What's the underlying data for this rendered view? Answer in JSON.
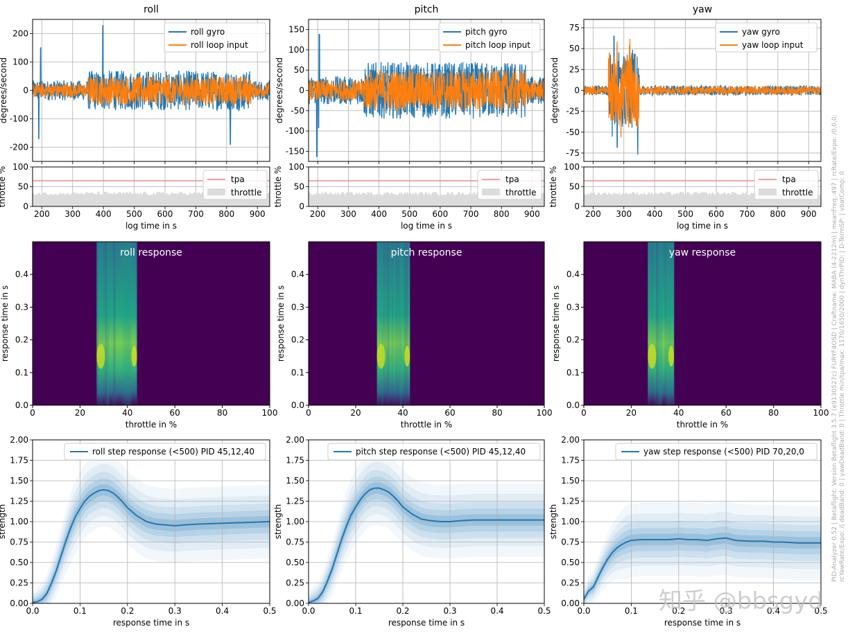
{
  "colors": {
    "gyro": "#1f77b4",
    "loop": "#ff7f0e",
    "tpa": "#f08080",
    "throttle": "#dcdcdc",
    "step": "#1f77b4",
    "grid": "#b0b0b0",
    "heat_bg": "#440154"
  },
  "side_text": {
    "line1": "PID-Analyzer 0.52 | Betaflight: Version Betaflight 3.5.7 (e9130527c) FURYF4OSD | Craftname: MABA (4-2212m) | meanFreq.:497 | rcRate/Expo: /0,0,0;",
    "line2": "rcYawRate/Expo: /| deadBand: 0 | yawDeadBand: 0 | Throttle min/tpa/max: 1170/1650/2000 | dynThrPID: | D-TermSP: | vbatComp: 0"
  },
  "watermark": "知乎 @bbsgyd",
  "chart_data": [
    {
      "id": "roll_time",
      "type": "line",
      "title": "roll",
      "ylabel": "degrees/second",
      "xlim": [
        170,
        940
      ],
      "ylim": [
        -250,
        250
      ],
      "yticks": [
        -200,
        -100,
        0,
        100,
        200
      ],
      "series": [
        {
          "name": "roll gyro",
          "amp_in": 70,
          "amp_out": 35,
          "spikes": [
            [
              190,
              -170
            ],
            [
              196,
              150
            ],
            [
              398,
              228
            ],
            [
              812,
              -190
            ]
          ]
        },
        {
          "name": "roll loop input",
          "amp_in": 50,
          "amp_out": 25
        }
      ]
    },
    {
      "id": "pitch_time",
      "type": "line",
      "title": "pitch",
      "ylabel": "degrees/second",
      "xlim": [
        170,
        940
      ],
      "ylim": [
        -175,
        175
      ],
      "yticks": [
        -150,
        -100,
        -50,
        0,
        50,
        100,
        150
      ],
      "series": [
        {
          "name": "pitch gyro",
          "amp_in": 70,
          "amp_out": 35,
          "spikes": [
            [
              197,
              -163
            ],
            [
              205,
              138
            ],
            [
              203,
              -92
            ]
          ]
        },
        {
          "name": "pitch loop input",
          "amp_in": 50,
          "amp_out": 25
        }
      ]
    },
    {
      "id": "yaw_time",
      "type": "line",
      "title": "yaw",
      "ylabel": "degrees/second",
      "xlim": [
        170,
        940
      ],
      "ylim": [
        -85,
        85
      ],
      "yticks": [
        -75,
        -50,
        -25,
        0,
        25,
        50,
        75
      ],
      "series": [
        {
          "name": "yaw gyro",
          "amp_in": 6,
          "amp_out": 6,
          "burst": [
            250,
            350
          ],
          "spikes": [
            [
              268,
              65
            ],
            [
              278,
              -68
            ],
            [
              300,
              40
            ],
            [
              345,
              -77
            ]
          ]
        },
        {
          "name": "yaw loop input",
          "amp_in": 5,
          "amp_out": 5
        }
      ]
    },
    {
      "id": "roll_thr",
      "type": "area",
      "xlabel": "log time in s",
      "ylabel": "throttle %",
      "xlim": [
        170,
        940
      ],
      "ylim": [
        0,
        100
      ],
      "yticks": [
        0,
        50,
        100
      ],
      "xticks": [
        200,
        300,
        400,
        500,
        600,
        700,
        800,
        900
      ],
      "series": [
        {
          "name": "tpa",
          "value": 65
        },
        {
          "name": "throttle",
          "value": 33
        }
      ]
    },
    {
      "id": "pitch_thr",
      "type": "area",
      "xlabel": "log time in s",
      "ylabel": "throttle %",
      "xlim": [
        170,
        940
      ],
      "ylim": [
        0,
        100
      ],
      "yticks": [
        0,
        50,
        100
      ],
      "xticks": [
        200,
        300,
        400,
        500,
        600,
        700,
        800,
        900
      ],
      "series": [
        {
          "name": "tpa",
          "value": 65
        },
        {
          "name": "throttle",
          "value": 33
        }
      ]
    },
    {
      "id": "yaw_thr",
      "type": "area",
      "xlabel": "log time in s",
      "ylabel": "throttle %",
      "xlim": [
        170,
        940
      ],
      "ylim": [
        0,
        100
      ],
      "yticks": [
        0,
        50,
        100
      ],
      "xticks": [
        200,
        300,
        400,
        500,
        600,
        700,
        800,
        900
      ],
      "series": [
        {
          "name": "tpa",
          "value": 65
        },
        {
          "name": "throttle",
          "value": 33
        }
      ]
    },
    {
      "id": "roll_heat",
      "type": "heatmap",
      "title": "roll response",
      "xlabel": "throttle in %",
      "ylabel": "response time in s",
      "xlim": [
        0,
        100
      ],
      "ylim": [
        0,
        0.5
      ],
      "xticks": [
        0,
        20,
        40,
        60,
        80,
        100
      ],
      "yticks": [
        0.0,
        0.1,
        0.2,
        0.3,
        0.4
      ],
      "band": [
        27,
        44
      ]
    },
    {
      "id": "pitch_heat",
      "type": "heatmap",
      "title": "pitch response",
      "xlabel": "throttle in %",
      "ylabel": "response time in s",
      "xlim": [
        0,
        100
      ],
      "ylim": [
        0,
        0.5
      ],
      "xticks": [
        0,
        20,
        40,
        60,
        80,
        100
      ],
      "yticks": [
        0.0,
        0.1,
        0.2,
        0.3,
        0.4
      ],
      "band": [
        29,
        43
      ]
    },
    {
      "id": "yaw_heat",
      "type": "heatmap",
      "title": "yaw response",
      "xlabel": "throttle in %",
      "ylabel": "response time in s",
      "xlim": [
        0,
        100
      ],
      "ylim": [
        0,
        0.5
      ],
      "xticks": [
        0,
        20,
        40,
        60,
        80,
        100
      ],
      "yticks": [
        0.0,
        0.1,
        0.2,
        0.3,
        0.4
      ],
      "band": [
        27,
        38
      ]
    },
    {
      "id": "roll_step",
      "type": "line",
      "series_name": "roll step response (<500)  PID 45,12,40",
      "xlabel": "response time in s",
      "ylabel": "strength",
      "xlim": [
        0,
        0.5
      ],
      "ylim": [
        0,
        2
      ],
      "xticks": [
        0.0,
        0.1,
        0.2,
        0.3,
        0.4,
        0.5
      ],
      "yticks": [
        0.0,
        0.25,
        0.5,
        0.75,
        1.0,
        1.25,
        1.5,
        1.75,
        2.0
      ],
      "x": [
        0,
        0.01,
        0.02,
        0.03,
        0.04,
        0.05,
        0.06,
        0.07,
        0.08,
        0.09,
        0.1,
        0.11,
        0.12,
        0.13,
        0.14,
        0.15,
        0.16,
        0.17,
        0.18,
        0.19,
        0.2,
        0.22,
        0.24,
        0.26,
        0.28,
        0.3,
        0.32,
        0.35,
        0.4,
        0.45,
        0.5
      ],
      "y": [
        0.01,
        0.02,
        0.05,
        0.12,
        0.25,
        0.4,
        0.58,
        0.76,
        0.92,
        1.06,
        1.16,
        1.25,
        1.31,
        1.35,
        1.38,
        1.39,
        1.38,
        1.35,
        1.3,
        1.24,
        1.17,
        1.07,
        1.0,
        0.97,
        0.96,
        0.95,
        0.96,
        0.97,
        0.98,
        0.99,
        1.0
      ]
    },
    {
      "id": "pitch_step",
      "type": "line",
      "series_name": "pitch step response (<500)  PID 45,12,40",
      "xlabel": "response time in s",
      "ylabel": "strength",
      "xlim": [
        0,
        0.5
      ],
      "ylim": [
        0,
        2
      ],
      "xticks": [
        0.0,
        0.1,
        0.2,
        0.3,
        0.4,
        0.5
      ],
      "yticks": [
        0.0,
        0.25,
        0.5,
        0.75,
        1.0,
        1.25,
        1.5,
        1.75,
        2.0
      ],
      "x": [
        0,
        0.01,
        0.02,
        0.03,
        0.04,
        0.05,
        0.06,
        0.07,
        0.08,
        0.09,
        0.1,
        0.11,
        0.12,
        0.13,
        0.14,
        0.15,
        0.16,
        0.17,
        0.18,
        0.19,
        0.2,
        0.22,
        0.24,
        0.26,
        0.28,
        0.3,
        0.32,
        0.35,
        0.4,
        0.45,
        0.5
      ],
      "y": [
        0.01,
        0.03,
        0.06,
        0.14,
        0.27,
        0.42,
        0.6,
        0.78,
        0.94,
        1.08,
        1.18,
        1.27,
        1.34,
        1.39,
        1.41,
        1.41,
        1.39,
        1.36,
        1.31,
        1.25,
        1.18,
        1.09,
        1.03,
        1.01,
        1.0,
        1.0,
        1.01,
        1.02,
        1.02,
        1.02,
        1.02
      ]
    },
    {
      "id": "yaw_step",
      "type": "line",
      "series_name": "yaw step response (<500)  PID 70,20,0",
      "xlabel": "response time in s",
      "ylabel": "strength",
      "xlim": [
        0,
        0.5
      ],
      "ylim": [
        0,
        2
      ],
      "xticks": [
        0.0,
        0.1,
        0.2,
        0.3,
        0.4,
        0.5
      ],
      "yticks": [
        0.0,
        0.25,
        0.5,
        0.75,
        1.0,
        1.25,
        1.5,
        1.75,
        2.0
      ],
      "x": [
        0,
        0.005,
        0.01,
        0.02,
        0.03,
        0.04,
        0.05,
        0.06,
        0.07,
        0.08,
        0.09,
        0.1,
        0.12,
        0.14,
        0.16,
        0.18,
        0.2,
        0.22,
        0.24,
        0.26,
        0.28,
        0.3,
        0.32,
        0.35,
        0.38,
        0.4,
        0.42,
        0.45,
        0.48,
        0.5
      ],
      "y": [
        0.05,
        0.1,
        0.15,
        0.2,
        0.32,
        0.44,
        0.54,
        0.62,
        0.68,
        0.72,
        0.75,
        0.77,
        0.78,
        0.78,
        0.78,
        0.78,
        0.79,
        0.78,
        0.78,
        0.77,
        0.79,
        0.8,
        0.77,
        0.76,
        0.76,
        0.75,
        0.75,
        0.74,
        0.74,
        0.74
      ]
    }
  ]
}
